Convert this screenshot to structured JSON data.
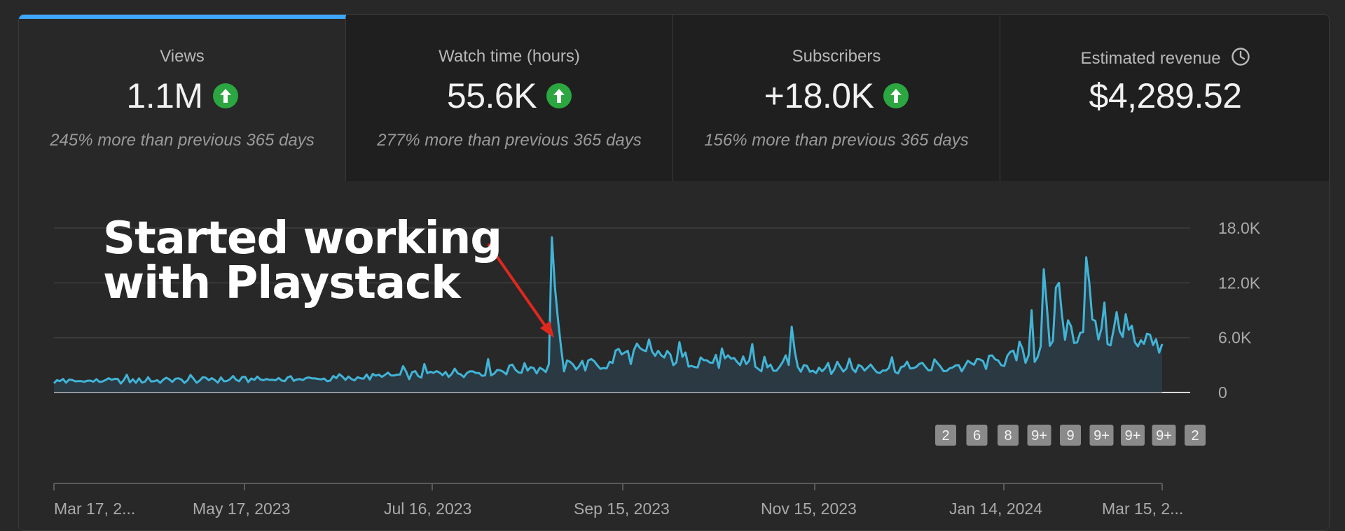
{
  "metrics": [
    {
      "label": "Views",
      "value": "1.1M",
      "trend": "up",
      "comparison": "245% more than previous 365 days"
    },
    {
      "label": "Watch time (hours)",
      "value": "55.6K",
      "trend": "up",
      "comparison": "277% more than previous 365 days"
    },
    {
      "label": "Subscribers",
      "value": "+18.0K",
      "trend": "up",
      "comparison": "156% more than previous 365 days"
    },
    {
      "label": "Estimated revenue",
      "value": "$4,289.52",
      "icon": "clock-icon"
    }
  ],
  "annotation": {
    "text": "Started working\nwith Playstack",
    "arrow_color": "#e0281d"
  },
  "colors": {
    "accent": "#3ea6ff",
    "line": "#41b4d6",
    "trend_up": "#2ba640",
    "background": "#282828"
  },
  "chart_data": {
    "type": "area",
    "ytick_labels": [
      "18.0K",
      "12.0K",
      "6.0K",
      "0"
    ],
    "ylim": [
      0,
      18000
    ],
    "xtick_labels": [
      "Mar 17, 2...",
      "May 17, 2023",
      "Jul 16, 2023",
      "Sep 15, 2023",
      "Nov 15, 2023",
      "Jan 14, 2024",
      "Mar 15, 2..."
    ],
    "x": [
      "Mar 17, 2023",
      "May 17, 2023",
      "Jul 16, 2023",
      "Aug 27, 2023",
      "Sep 1, 2023",
      "Sep 15, 2023",
      "Oct 15, 2023",
      "Nov 15, 2023",
      "Dec 15, 2023",
      "Jan 14, 2024",
      "Feb 1, 2024",
      "Feb 15, 2024",
      "Mar 1, 2024",
      "Mar 15, 2024"
    ],
    "series": [
      {
        "values": [
          1500,
          1300,
          2400,
          3500,
          17000,
          5000,
          3600,
          2800,
          2200,
          2400,
          4000,
          8000,
          14500,
          5000
        ]
      }
    ],
    "grid": true,
    "event_badges": [
      "2",
      "6",
      "8",
      "9+",
      "9",
      "9+",
      "9+",
      "9+",
      "2"
    ]
  }
}
